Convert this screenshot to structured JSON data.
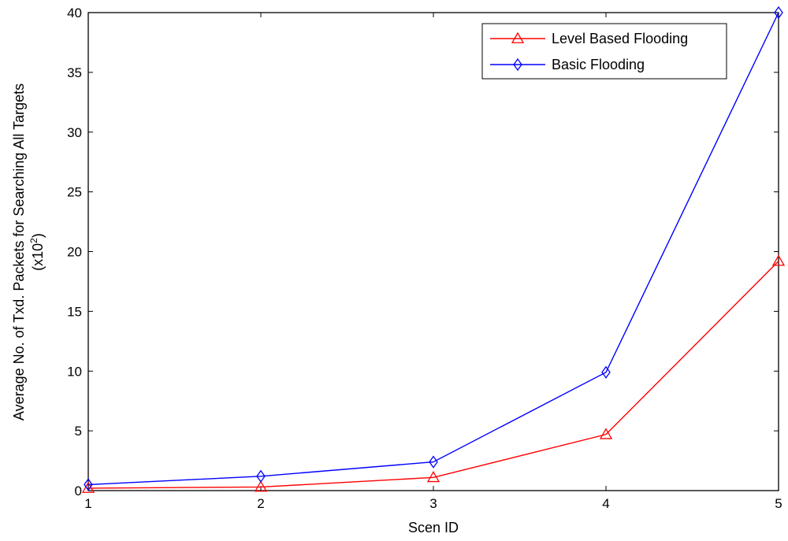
{
  "chart_data": {
    "type": "line",
    "x": [
      1,
      2,
      3,
      4,
      5
    ],
    "xlim": [
      1,
      5
    ],
    "ylim": [
      0,
      40
    ],
    "xticks": [
      1,
      2,
      3,
      4,
      5
    ],
    "yticks": [
      0,
      5,
      10,
      15,
      20,
      25,
      30,
      35,
      40
    ],
    "xlabel": "Scen ID",
    "ylabel_line1": "Average No. of Txd. Packets for Searching All Targets",
    "ylabel_line2_prefix": "(x10",
    "ylabel_line2_sup": "2",
    "ylabel_line2_suffix": ")",
    "legend_position": "top-right",
    "grid": false,
    "series": [
      {
        "name": "Level Based Flooding",
        "color": "#ff0000",
        "marker": "triangle",
        "values": [
          0.2,
          0.3,
          1.1,
          4.7,
          19.2
        ]
      },
      {
        "name": "Basic Flooding",
        "color": "#0000ff",
        "marker": "diamond",
        "values": [
          0.5,
          1.2,
          2.4,
          9.9,
          40.0
        ]
      }
    ]
  }
}
